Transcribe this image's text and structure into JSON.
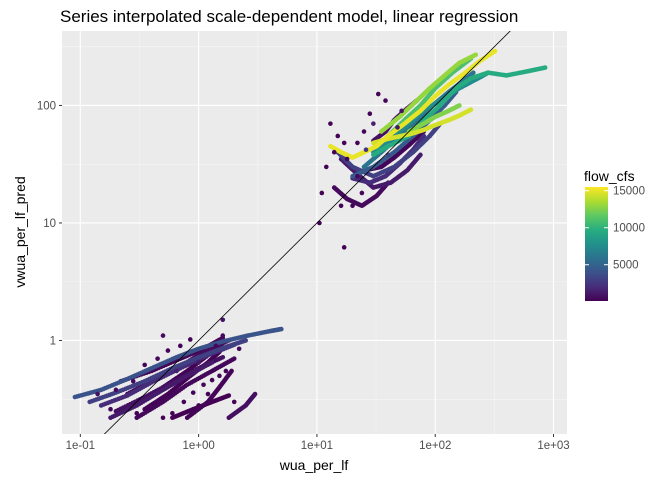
{
  "chart_data": {
    "type": "scatter",
    "title": "Series interpolated scale-dependent model, linear regression",
    "xlabel": "wua_per_lf",
    "ylabel": "vwua_per_lf_pred",
    "x_scale": "log10",
    "y_scale": "log10",
    "xlim": [
      0.07,
      1300
    ],
    "ylim": [
      0.16,
      430
    ],
    "x_ticks": [
      {
        "value": 0.1,
        "label": "1e-01"
      },
      {
        "value": 1,
        "label": "1e+00"
      },
      {
        "value": 10,
        "label": "1e+01"
      },
      {
        "value": 100,
        "label": "1e+02"
      },
      {
        "value": 1000,
        "label": "1e+03"
      }
    ],
    "y_ticks": [
      {
        "value": 1,
        "label": "1"
      },
      {
        "value": 10,
        "label": "10"
      },
      {
        "value": 100,
        "label": "100"
      }
    ],
    "reference_line": "y = x",
    "grid": true,
    "background": "#ebebeb",
    "legend": {
      "title": "flow_cfs",
      "placement": "right",
      "type": "colorbar",
      "palette": "viridis",
      "range": [
        100,
        15500
      ],
      "ticks": [
        {
          "value": 5000,
          "label": "5000"
        },
        {
          "value": 10000,
          "label": "10000"
        },
        {
          "value": 15000,
          "label": "15000"
        }
      ]
    },
    "series": [
      {
        "x": [
          0.09,
          0.15,
          0.25,
          0.4,
          0.65,
          1.0,
          1.6,
          2.6,
          4.0,
          5.0
        ],
        "y": [
          0.33,
          0.38,
          0.47,
          0.58,
          0.72,
          0.85,
          0.98,
          1.1,
          1.2,
          1.25
        ],
        "flow": 4000
      },
      {
        "x": [
          0.12,
          0.2,
          0.35,
          0.6,
          1.0,
          1.7,
          2.5
        ],
        "y": [
          0.3,
          0.36,
          0.45,
          0.58,
          0.72,
          0.88,
          1.0
        ],
        "flow": 3000
      },
      {
        "x": [
          0.15,
          0.25,
          0.4,
          0.7,
          1.2,
          2.0
        ],
        "y": [
          0.28,
          0.34,
          0.44,
          0.58,
          0.75,
          0.92
        ],
        "flow": 2000
      },
      {
        "x": [
          0.18,
          0.3,
          0.5,
          0.8,
          1.3
        ],
        "y": [
          0.22,
          0.28,
          0.38,
          0.5,
          0.65
        ],
        "flow": 1200
      },
      {
        "x": [
          0.2,
          0.35,
          0.6,
          1.0,
          1.6
        ],
        "y": [
          0.25,
          0.33,
          0.44,
          0.58,
          0.72
        ],
        "flow": 800
      },
      {
        "x": [
          0.25,
          0.4,
          0.7,
          1.1,
          1.8
        ],
        "y": [
          0.35,
          0.45,
          0.6,
          0.8,
          1.0
        ],
        "flow": 600
      },
      {
        "x": [
          0.3,
          0.5,
          0.8,
          1.3,
          2.0
        ],
        "y": [
          0.22,
          0.3,
          0.42,
          0.55,
          0.7
        ],
        "flow": 400
      },
      {
        "x": [
          0.22,
          0.4,
          0.7,
          1.1,
          1.6
        ],
        "y": [
          0.45,
          0.55,
          0.7,
          0.85,
          1.05
        ],
        "flow": 300
      },
      {
        "x": [
          0.35,
          0.55,
          0.85,
          1.2,
          1.5
        ],
        "y": [
          0.26,
          0.35,
          0.5,
          0.65,
          0.8
        ],
        "flow": 200
      },
      {
        "x": [
          0.5,
          0.8,
          1.2,
          1.6
        ],
        "y": [
          0.4,
          0.55,
          0.75,
          0.95
        ],
        "flow": 150
      },
      {
        "x": [
          0.6,
          0.9,
          1.3,
          1.8
        ],
        "y": [
          0.22,
          0.26,
          0.3,
          0.34
        ],
        "flow": 100
      },
      {
        "x": [
          0.8,
          1.2,
          1.5,
          1.9
        ],
        "y": [
          0.22,
          0.3,
          0.4,
          0.55
        ],
        "flow": 250
      },
      {
        "x": [
          1.8,
          2.5,
          3.0
        ],
        "y": [
          0.22,
          0.28,
          0.35
        ],
        "flow": 700
      },
      {
        "x": [
          13,
          16,
          20,
          25,
          32,
          40,
          55,
          75,
          100,
          130,
          180,
          240,
          320
        ],
        "y": [
          45,
          40,
          36,
          40,
          45,
          55,
          70,
          90,
          120,
          150,
          190,
          240,
          290
        ],
        "flow": 15000
      },
      {
        "x": [
          30,
          40,
          60,
          80,
          110,
          150,
          200,
          280,
          400,
          600,
          850
        ],
        "y": [
          38,
          45,
          55,
          75,
          100,
          140,
          170,
          190,
          180,
          195,
          210
        ],
        "flow": 9500
      },
      {
        "x": [
          35,
          50,
          70,
          90,
          120,
          160,
          220
        ],
        "y": [
          60,
          80,
          110,
          140,
          180,
          230,
          270
        ],
        "flow": 13000
      },
      {
        "x": [
          40,
          55,
          75,
          100,
          140,
          200
        ],
        "y": [
          55,
          75,
          100,
          140,
          190,
          250
        ],
        "flow": 11000
      },
      {
        "x": [
          30,
          45,
          60,
          80,
          110,
          160,
          230,
          280
        ],
        "y": [
          40,
          55,
          70,
          90,
          110,
          140,
          170,
          190
        ],
        "flow": 7500
      },
      {
        "x": [
          25,
          35,
          50,
          70,
          95,
          130,
          170,
          210
        ],
        "y": [
          30,
          40,
          55,
          75,
          100,
          130,
          160,
          190
        ],
        "flow": 6000
      },
      {
        "x": [
          20,
          30,
          45,
          65,
          90,
          120,
          150
        ],
        "y": [
          25,
          30,
          40,
          55,
          75,
          100,
          130
        ],
        "flow": 4500
      },
      {
        "x": [
          15,
          20,
          30,
          45,
          65,
          90,
          110
        ],
        "y": [
          40,
          30,
          25,
          30,
          40,
          55,
          70
        ],
        "flow": 3000
      },
      {
        "x": [
          20,
          28,
          38,
          50,
          65,
          80
        ],
        "y": [
          24,
          22,
          25,
          32,
          42,
          55
        ],
        "flow": 2000
      },
      {
        "x": [
          16,
          22,
          30,
          42,
          58,
          75
        ],
        "y": [
          35,
          26,
          20,
          22,
          28,
          38
        ],
        "flow": 1200
      },
      {
        "x": [
          14,
          18,
          24,
          32,
          40
        ],
        "y": [
          20,
          16,
          14,
          17,
          22
        ],
        "flow": 500
      },
      {
        "x": [
          25,
          35,
          45,
          60,
          80
        ],
        "y": [
          28,
          30,
          36,
          46,
          60
        ],
        "flow": 300
      },
      {
        "x": [
          30,
          38,
          45,
          55,
          70
        ],
        "y": [
          50,
          60,
          75,
          90,
          110
        ],
        "flow": 800
      },
      {
        "x": [
          60,
          80,
          100,
          130,
          160
        ],
        "y": [
          60,
          70,
          80,
          90,
          100
        ],
        "flow": 12500
      },
      {
        "x": [
          30,
          40,
          52,
          65,
          80,
          100,
          130,
          160,
          200
        ],
        "y": [
          48,
          52,
          55,
          58,
          62,
          68,
          75,
          82,
          92
        ],
        "flow": 14500
      }
    ],
    "points": [
      {
        "x": 13,
        "y": 70,
        "flow": 200
      },
      {
        "x": 15,
        "y": 55,
        "flow": 200
      },
      {
        "x": 17,
        "y": 48,
        "flow": 150
      },
      {
        "x": 14,
        "y": 40,
        "flow": 200
      },
      {
        "x": 12,
        "y": 30,
        "flow": 200
      },
      {
        "x": 10.5,
        "y": 10,
        "flow": 150
      },
      {
        "x": 17,
        "y": 6.2,
        "flow": 150
      },
      {
        "x": 20,
        "y": 14,
        "flow": 250
      },
      {
        "x": 18,
        "y": 35,
        "flow": 300
      },
      {
        "x": 22,
        "y": 48,
        "flow": 200
      },
      {
        "x": 25,
        "y": 60,
        "flow": 300
      },
      {
        "x": 33,
        "y": 125,
        "flow": 250
      },
      {
        "x": 38,
        "y": 110,
        "flow": 300
      },
      {
        "x": 28,
        "y": 85,
        "flow": 250
      },
      {
        "x": 30,
        "y": 70,
        "flow": 1500
      },
      {
        "x": 22,
        "y": 25,
        "flow": 400
      },
      {
        "x": 24,
        "y": 18,
        "flow": 350
      },
      {
        "x": 16,
        "y": 14,
        "flow": 200
      },
      {
        "x": 11,
        "y": 18,
        "flow": 150
      },
      {
        "x": 26,
        "y": 42,
        "flow": 2500
      },
      {
        "x": 40,
        "y": 38,
        "flow": 3500
      },
      {
        "x": 48,
        "y": 65,
        "flow": 1000
      },
      {
        "x": 52,
        "y": 90,
        "flow": 900
      },
      {
        "x": 0.35,
        "y": 0.62,
        "flow": 300
      },
      {
        "x": 0.45,
        "y": 0.7,
        "flow": 250
      },
      {
        "x": 0.55,
        "y": 0.82,
        "flow": 250
      },
      {
        "x": 0.7,
        "y": 0.9,
        "flow": 200
      },
      {
        "x": 0.85,
        "y": 1.02,
        "flow": 200
      },
      {
        "x": 0.6,
        "y": 0.24,
        "flow": 150
      },
      {
        "x": 0.75,
        "y": 0.3,
        "flow": 200
      },
      {
        "x": 0.9,
        "y": 0.36,
        "flow": 250
      },
      {
        "x": 1.1,
        "y": 0.42,
        "flow": 300
      },
      {
        "x": 1.3,
        "y": 0.46,
        "flow": 250
      },
      {
        "x": 1.5,
        "y": 0.5,
        "flow": 300
      },
      {
        "x": 1.7,
        "y": 0.55,
        "flow": 200
      },
      {
        "x": 2.0,
        "y": 0.3,
        "flow": 150
      },
      {
        "x": 1.0,
        "y": 0.28,
        "flow": 150
      },
      {
        "x": 1.2,
        "y": 0.35,
        "flow": 200
      },
      {
        "x": 1.4,
        "y": 0.9,
        "flow": 350
      },
      {
        "x": 1.6,
        "y": 1.1,
        "flow": 500
      },
      {
        "x": 2.2,
        "y": 0.85,
        "flow": 450
      },
      {
        "x": 0.3,
        "y": 0.24,
        "flow": 200
      },
      {
        "x": 0.4,
        "y": 0.27,
        "flow": 300
      },
      {
        "x": 0.5,
        "y": 0.22,
        "flow": 200
      },
      {
        "x": 0.28,
        "y": 0.45,
        "flow": 400
      },
      {
        "x": 0.5,
        "y": 1.1,
        "flow": 600
      },
      {
        "x": 1.6,
        "y": 1.5,
        "flow": 800
      },
      {
        "x": 0.2,
        "y": 0.38,
        "flow": 500
      },
      {
        "x": 0.65,
        "y": 0.55,
        "flow": 1500
      },
      {
        "x": 1.0,
        "y": 0.65,
        "flow": 1200
      },
      {
        "x": 0.18,
        "y": 0.26,
        "flow": 300
      },
      {
        "x": 0.14,
        "y": 0.35,
        "flow": 900
      }
    ]
  }
}
